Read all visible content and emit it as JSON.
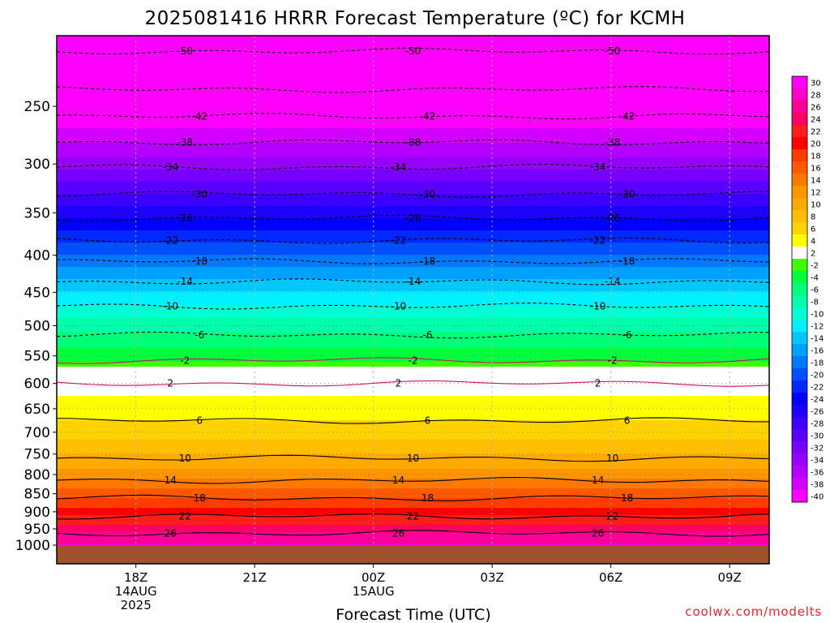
{
  "chart_data": {
    "type": "heatmap",
    "title": "2025081416 HRRR Forecast Temperature (ºC) for KCMH",
    "xlabel": "Forecast Time (UTC)",
    "ylabel": "",
    "credit": "coolwx.com/modelts",
    "y_axis": {
      "scale": "log-pressure",
      "reversed": true,
      "ylim": [
        1000,
        200
      ],
      "ticks": [
        250,
        300,
        350,
        400,
        450,
        500,
        550,
        600,
        650,
        700,
        750,
        800,
        850,
        900,
        950,
        1000
      ]
    },
    "x_axis": {
      "ticks": [
        {
          "label": "18Z",
          "sub1": "14AUG",
          "sub2": "2025",
          "hour": 18
        },
        {
          "label": "21Z",
          "sub1": "",
          "sub2": "",
          "hour": 21
        },
        {
          "label": "00Z",
          "sub1": "15AUG",
          "sub2": "",
          "hour": 24
        },
        {
          "label": "03Z",
          "sub1": "",
          "sub2": "",
          "hour": 27
        },
        {
          "label": "06Z",
          "sub1": "",
          "sub2": "",
          "hour": 30
        },
        {
          "label": "09Z",
          "sub1": "",
          "sub2": "",
          "hour": 33
        }
      ],
      "xlim": [
        16,
        34
      ]
    },
    "grid": true,
    "legend": "colorbar-right",
    "profile": [
      {
        "p": 1000,
        "t": 28
      },
      {
        "p": 975,
        "t": 27
      },
      {
        "p": 950,
        "t": 25
      },
      {
        "p": 925,
        "t": 23
      },
      {
        "p": 900,
        "t": 21
      },
      {
        "p": 875,
        "t": 19
      },
      {
        "p": 850,
        "t": 17
      },
      {
        "p": 825,
        "t": 15
      },
      {
        "p": 800,
        "t": 13
      },
      {
        "p": 775,
        "t": 11.5
      },
      {
        "p": 750,
        "t": 10
      },
      {
        "p": 725,
        "t": 8.5
      },
      {
        "p": 700,
        "t": 7
      },
      {
        "p": 675,
        "t": 6
      },
      {
        "p": 650,
        "t": 5.5
      },
      {
        "p": 625,
        "t": 4
      },
      {
        "p": 600,
        "t": 2
      },
      {
        "p": 575,
        "t": 0
      },
      {
        "p": 560,
        "t": -2
      },
      {
        "p": 550,
        "t": -3
      },
      {
        "p": 500,
        "t": -7
      },
      {
        "p": 450,
        "t": -12
      },
      {
        "p": 400,
        "t": -18
      },
      {
        "p": 350,
        "t": -25
      },
      {
        "p": 300,
        "t": -33
      },
      {
        "p": 250,
        "t": -41
      },
      {
        "p": 200,
        "t": -51
      }
    ],
    "contours": [
      {
        "value": 26,
        "p": 963,
        "label": "26"
      },
      {
        "value": 22,
        "p": 913,
        "label": "22"
      },
      {
        "value": 18,
        "p": 862,
        "label": "18"
      },
      {
        "value": 14,
        "p": 815,
        "label": "14"
      },
      {
        "value": 10,
        "p": 760,
        "label": "10"
      },
      {
        "value": 6,
        "p": 675,
        "label": "6"
      },
      {
        "value": 2,
        "p": 600,
        "label": "2"
      },
      {
        "value": -2,
        "p": 558,
        "label": "-2"
      },
      {
        "value": -6,
        "p": 515,
        "label": "-6"
      },
      {
        "value": -10,
        "p": 470,
        "label": "-10"
      },
      {
        "value": -14,
        "p": 435,
        "label": "-14"
      },
      {
        "value": -18,
        "p": 408,
        "label": "-18"
      },
      {
        "value": -22,
        "p": 382,
        "label": "-22"
      },
      {
        "value": -26,
        "p": 356,
        "label": "-26"
      },
      {
        "value": -30,
        "p": 330,
        "label": "-30"
      },
      {
        "value": -34,
        "p": 303,
        "label": "-34"
      },
      {
        "value": -38,
        "p": 280,
        "label": "-38"
      },
      {
        "value": -42,
        "p": 258,
        "label": "-42"
      },
      {
        "value": -46,
        "p": 237,
        "label": ""
      },
      {
        "value": -50,
        "p": 210,
        "label": "-50"
      }
    ],
    "colorbar": [
      {
        "label": "30",
        "color": "#ff00ff"
      },
      {
        "label": "28",
        "color": "#ff00c8"
      },
      {
        "label": "26",
        "color": "#ff0096"
      },
      {
        "label": "24",
        "color": "#ff0064"
      },
      {
        "label": "22",
        "color": "#ff1e1e"
      },
      {
        "label": "20",
        "color": "#ff0000"
      },
      {
        "label": "18",
        "color": "#ff3c00"
      },
      {
        "label": "16",
        "color": "#ff5a00"
      },
      {
        "label": "14",
        "color": "#ff7800"
      },
      {
        "label": "12",
        "color": "#ff9600"
      },
      {
        "label": "10",
        "color": "#ffaa00"
      },
      {
        "label": "8",
        "color": "#ffbe00"
      },
      {
        "label": "6",
        "color": "#ffd200"
      },
      {
        "label": "4",
        "color": "#ffff00"
      },
      {
        "label": "2",
        "color": "#ffffff"
      },
      {
        "label": "-2",
        "color": "#3cff00"
      },
      {
        "label": "-4",
        "color": "#00ff3c"
      },
      {
        "label": "-6",
        "color": "#00ff78"
      },
      {
        "label": "-8",
        "color": "#00ffaa"
      },
      {
        "label": "-10",
        "color": "#00ffd2"
      },
      {
        "label": "-12",
        "color": "#00f0ff"
      },
      {
        "label": "-14",
        "color": "#00c8ff"
      },
      {
        "label": "-16",
        "color": "#00a0ff"
      },
      {
        "label": "-18",
        "color": "#0078ff"
      },
      {
        "label": "-20",
        "color": "#0050ff"
      },
      {
        "label": "-22",
        "color": "#0028ff"
      },
      {
        "label": "-24",
        "color": "#0000ff"
      },
      {
        "label": "-26",
        "color": "#1e00ff"
      },
      {
        "label": "-28",
        "color": "#3c00ff"
      },
      {
        "label": "-30",
        "color": "#5a00ff"
      },
      {
        "label": "-32",
        "color": "#7800ff"
      },
      {
        "label": "-34",
        "color": "#9600ff"
      },
      {
        "label": "-36",
        "color": "#b400ff"
      },
      {
        "label": "-38",
        "color": "#d200ff"
      },
      {
        "label": "-40",
        "color": "#ff00ff"
      }
    ],
    "below_ground_color": "#a0522d"
  }
}
